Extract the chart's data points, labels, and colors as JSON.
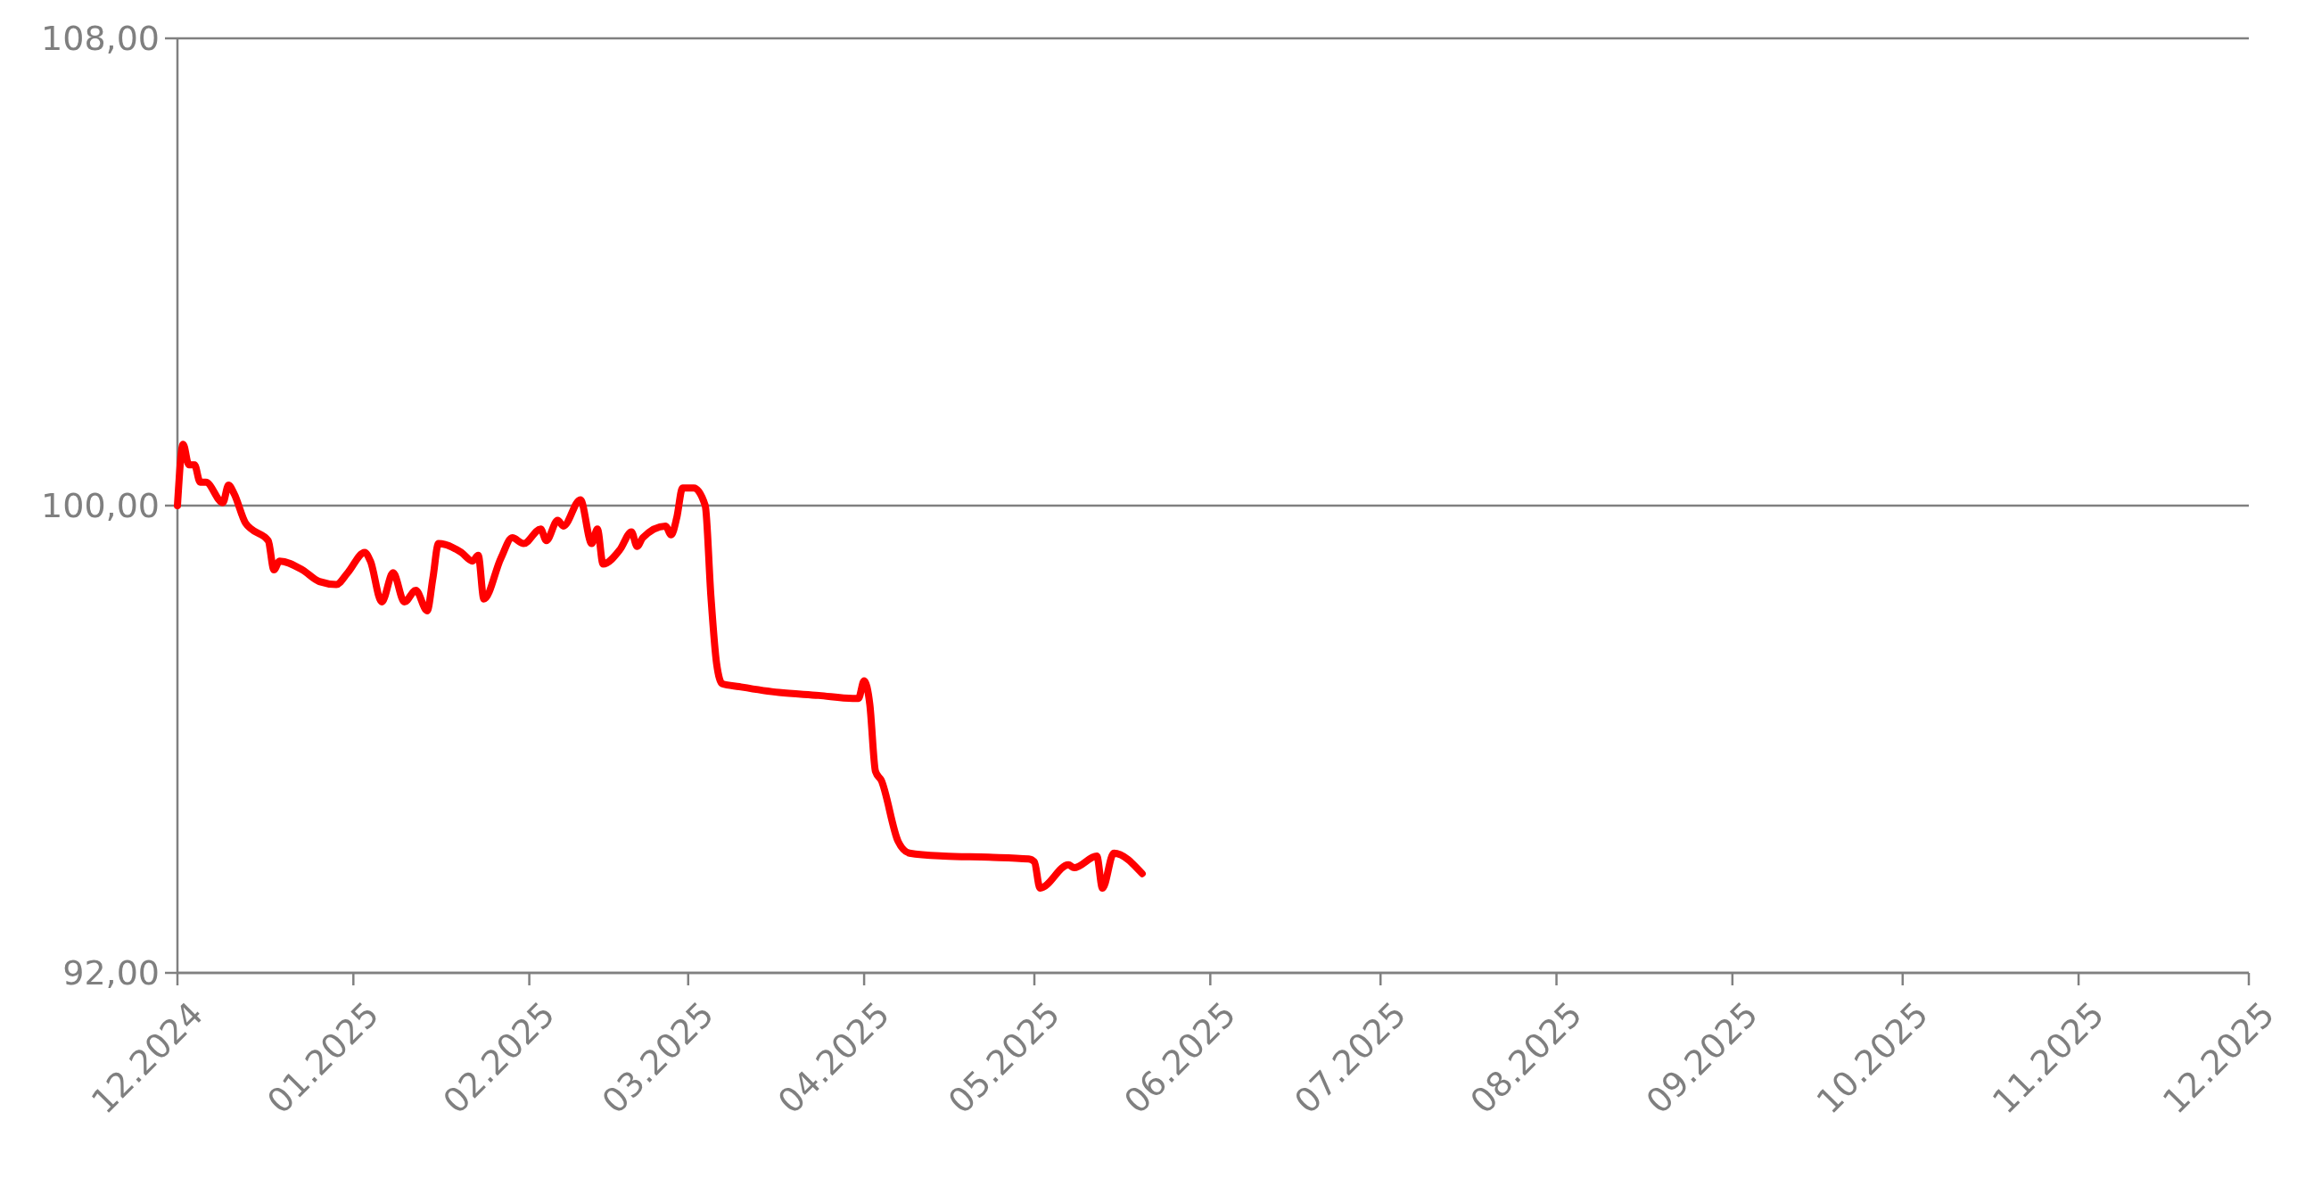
{
  "chart_data": {
    "type": "line",
    "x": [
      "2024-12-01",
      "2024-12-02",
      "2024-12-03",
      "2024-12-04",
      "2024-12-05",
      "2024-12-06",
      "2024-12-09",
      "2024-12-10",
      "2024-12-11",
      "2024-12-13",
      "2024-12-14",
      "2024-12-17",
      "2024-12-18",
      "2024-12-19",
      "2024-12-23",
      "2024-12-26",
      "2024-12-29",
      "2024-12-31",
      "2025-01-03",
      "2025-01-04",
      "2025-01-06",
      "2025-01-08",
      "2025-01-10",
      "2025-01-12",
      "2025-01-14",
      "2025-01-15",
      "2025-01-16",
      "2025-01-20",
      "2025-01-22",
      "2025-01-23",
      "2025-01-24",
      "2025-01-27",
      "2025-01-29",
      "2025-01-31",
      "2025-02-03",
      "2025-02-04",
      "2025-02-06",
      "2025-02-07",
      "2025-02-10",
      "2025-02-12",
      "2025-02-13",
      "2025-02-14",
      "2025-02-17",
      "2025-02-19",
      "2025-02-20",
      "2025-02-21",
      "2025-02-25",
      "2025-02-26",
      "2025-02-27",
      "2025-02-28",
      "2025-03-02",
      "2025-03-04",
      "2025-03-05",
      "2025-03-06",
      "2025-03-07",
      "2025-03-10",
      "2025-03-17",
      "2025-03-24",
      "2025-03-30",
      "2025-03-31",
      "2025-04-01",
      "2025-04-02",
      "2025-04-03",
      "2025-04-04",
      "2025-04-07",
      "2025-04-09",
      "2025-04-15",
      "2025-04-23",
      "2025-04-30",
      "2025-05-01",
      "2025-05-02",
      "2025-05-07",
      "2025-05-08",
      "2025-05-12",
      "2025-05-13",
      "2025-05-15",
      "2025-05-20"
    ],
    "series": [
      {
        "color": "#ff0000",
        "values": [
          100.0,
          101.05,
          100.7,
          100.7,
          100.4,
          100.4,
          100.05,
          100.35,
          100.2,
          99.7,
          99.6,
          99.4,
          98.9,
          99.05,
          98.9,
          98.7,
          98.65,
          98.85,
          99.2,
          99.05,
          98.35,
          98.85,
          98.35,
          98.55,
          98.2,
          98.75,
          99.35,
          99.2,
          99.05,
          99.15,
          98.4,
          99.1,
          99.45,
          99.35,
          99.6,
          99.4,
          99.75,
          99.65,
          100.1,
          99.35,
          99.6,
          99.0,
          99.25,
          99.55,
          99.3,
          99.45,
          99.65,
          99.5,
          99.8,
          100.3,
          100.3,
          100.0,
          98.45,
          97.3,
          96.95,
          96.9,
          96.8,
          96.75,
          96.7,
          96.7,
          97.0,
          96.6,
          95.45,
          95.3,
          94.25,
          94.05,
          94.0,
          93.98,
          93.95,
          93.9,
          93.45,
          93.85,
          93.8,
          94.0,
          93.45,
          94.05,
          93.7
        ]
      }
    ],
    "xlim": [
      "2024-12-01",
      "2025-12-01"
    ],
    "xticks": [
      {
        "value": "2024-12-01",
        "label": "12.2024"
      },
      {
        "value": "2025-01-01",
        "label": "01.2025"
      },
      {
        "value": "2025-02-01",
        "label": "02.2025"
      },
      {
        "value": "2025-03-01",
        "label": "03.2025"
      },
      {
        "value": "2025-04-01",
        "label": "04.2025"
      },
      {
        "value": "2025-05-01",
        "label": "05.2025"
      },
      {
        "value": "2025-06-01",
        "label": "06.2025"
      },
      {
        "value": "2025-07-01",
        "label": "07.2025"
      },
      {
        "value": "2025-08-01",
        "label": "08.2025"
      },
      {
        "value": "2025-09-01",
        "label": "09.2025"
      },
      {
        "value": "2025-10-01",
        "label": "10.2025"
      },
      {
        "value": "2025-11-01",
        "label": "11.2025"
      },
      {
        "value": "2025-12-01",
        "label": "12.2025"
      }
    ],
    "ylim": [
      92,
      108
    ],
    "yticks": [
      {
        "value": 92,
        "label": "92,00"
      },
      {
        "value": 100,
        "label": "100,00"
      },
      {
        "value": 108,
        "label": "108,00"
      }
    ],
    "grid": "y",
    "line_style": "solid"
  }
}
